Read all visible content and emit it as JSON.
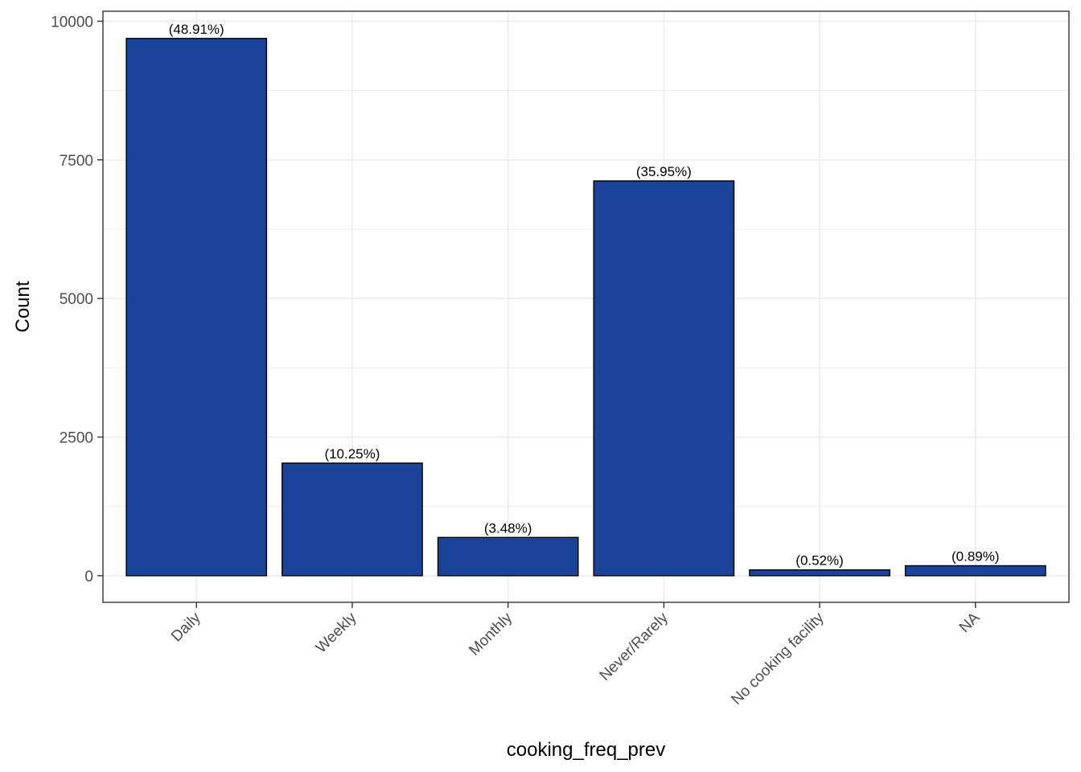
{
  "chart_data": {
    "type": "bar",
    "xlabel": "cooking_freq_prev",
    "ylabel": "Count",
    "categories": [
      "Daily",
      "Weekly",
      "Monthly",
      "Never/Rarely",
      "No cooking facility",
      "NA"
    ],
    "values": [
      9690,
      2030,
      690,
      7120,
      105,
      180
    ],
    "labels": [
      "(48.91%)",
      "(10.25%)",
      "(3.48%)",
      "(35.95%)",
      "(0.52%)",
      "(0.89%)"
    ],
    "ylim": [
      -480,
      10180
    ],
    "yticks": [
      0,
      2500,
      5000,
      7500,
      10000
    ],
    "ytick_labels": [
      "0",
      "2500",
      "5000",
      "7500",
      "10000"
    ],
    "grid": true,
    "colors": {
      "bar_fill": "#1a4399",
      "bar_stroke": "#000000",
      "grid": "#ebebeb",
      "panel_border": "#333333"
    }
  }
}
